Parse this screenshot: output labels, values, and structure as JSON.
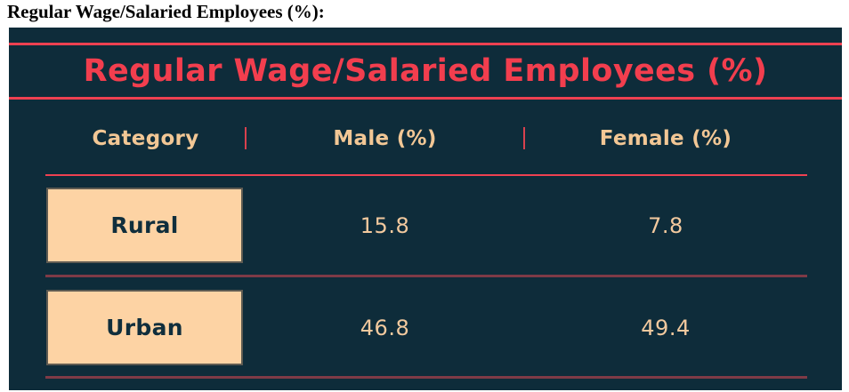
{
  "document": {
    "heading": "Regular Wage/Salaried Employees (%):"
  },
  "infographic": {
    "title": "Regular Wage/Salaried Employees (%)",
    "header": {
      "category": "Category",
      "male": "Male (%)",
      "female": "Female (%)"
    },
    "rows": [
      {
        "category": "Rural",
        "male": "15.8",
        "female": "7.8"
      },
      {
        "category": "Urban",
        "male": "46.8",
        "female": "49.4"
      }
    ],
    "colors": {
      "card_background": "#0e2c3a",
      "accent_red": "#ee4151",
      "title_red": "#f23e4e",
      "header_text": "#f2c795",
      "value_text": "#f2c99e",
      "row_separator": "#7e3a46",
      "category_box_fill": "#fdd3a4",
      "category_box_border": "#5e5b52",
      "category_box_text": "#102e3c",
      "document_heading_text": "#000000"
    }
  },
  "chart_data": {
    "type": "table",
    "title": "Regular Wage/Salaried Employees (%)",
    "columns": [
      "Category",
      "Male (%)",
      "Female (%)"
    ],
    "categories": [
      "Rural",
      "Urban"
    ],
    "series": [
      {
        "name": "Male (%)",
        "values": [
          15.8,
          46.8
        ]
      },
      {
        "name": "Female (%)",
        "values": [
          7.8,
          49.4
        ]
      }
    ],
    "rows": [
      [
        "Rural",
        15.8,
        7.8
      ],
      [
        "Urban",
        46.8,
        49.4
      ]
    ],
    "layout": {
      "style": "dark infographic table",
      "unit": "percent"
    }
  }
}
